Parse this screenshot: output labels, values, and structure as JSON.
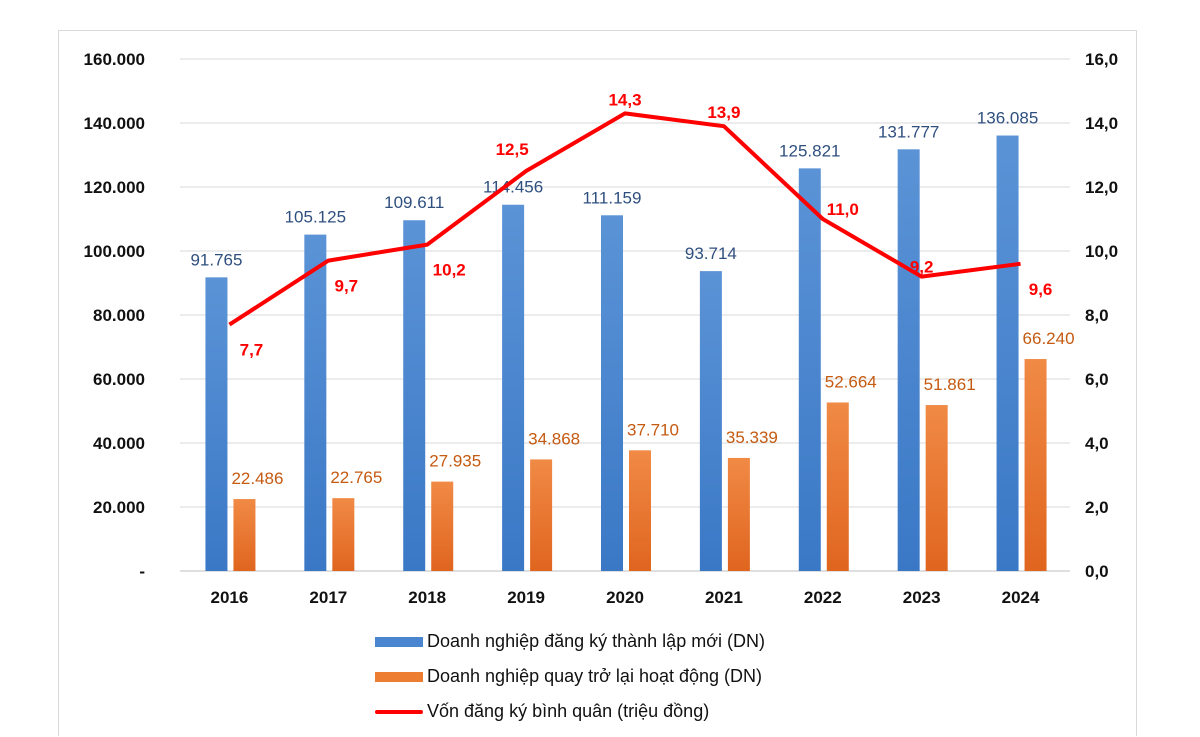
{
  "chart_data": {
    "type": "bar+line",
    "categories": [
      "2016",
      "2017",
      "2018",
      "2019",
      "2020",
      "2021",
      "2022",
      "2023",
      "2024"
    ],
    "series": [
      {
        "name": "Doanh nghiệp đăng ký thành lập mới (DN)",
        "type": "bar",
        "axis": "left",
        "color": "#4a86d0",
        "values": [
          91765,
          105125,
          109611,
          114456,
          111159,
          93714,
          125821,
          131777,
          136085
        ],
        "labels": [
          "91.765",
          "105.125",
          "109.611",
          "114.456",
          "111.159",
          "93.714",
          "125.821",
          "131.777",
          "136.085"
        ]
      },
      {
        "name": "Doanh nghiệp quay trở lại hoạt động (DN)",
        "type": "bar",
        "axis": "left",
        "color": "#ed7d31",
        "values": [
          22486,
          22765,
          27935,
          34868,
          37710,
          35339,
          52664,
          51861,
          66240
        ],
        "labels": [
          "22.486",
          "22.765",
          "27.935",
          "34.868",
          "37.710",
          "35.339",
          "52.664",
          "51.861",
          "66.240"
        ]
      },
      {
        "name": "Vốn đăng ký bình quân (triệu đồng)",
        "type": "line",
        "axis": "right",
        "color": "#ff0000",
        "values": [
          7.7,
          9.7,
          10.2,
          12.5,
          14.3,
          13.9,
          11.0,
          9.2,
          9.6
        ],
        "labels": [
          "7,7",
          "9,7",
          "10,2",
          "12,5",
          "14,3",
          "13,9",
          "11,0",
          "9,2",
          "9,6"
        ]
      }
    ],
    "y_left": {
      "range": [
        0,
        160000
      ],
      "ticks": [
        "-",
        "20.000",
        "40.000",
        "60.000",
        "80.000",
        "100.000",
        "120.000",
        "140.000",
        "160.000"
      ]
    },
    "y_right": {
      "range": [
        0,
        16
      ],
      "ticks": [
        "0,0",
        "2,0",
        "4,0",
        "6,0",
        "8,0",
        "10,0",
        "12,0",
        "14,0",
        "16,0"
      ]
    },
    "grid": true,
    "legend_position": "bottom",
    "label_colors": {
      "bar1": "#2f4f7f",
      "bar2": "#c55a11",
      "line": "#ff0000"
    }
  }
}
